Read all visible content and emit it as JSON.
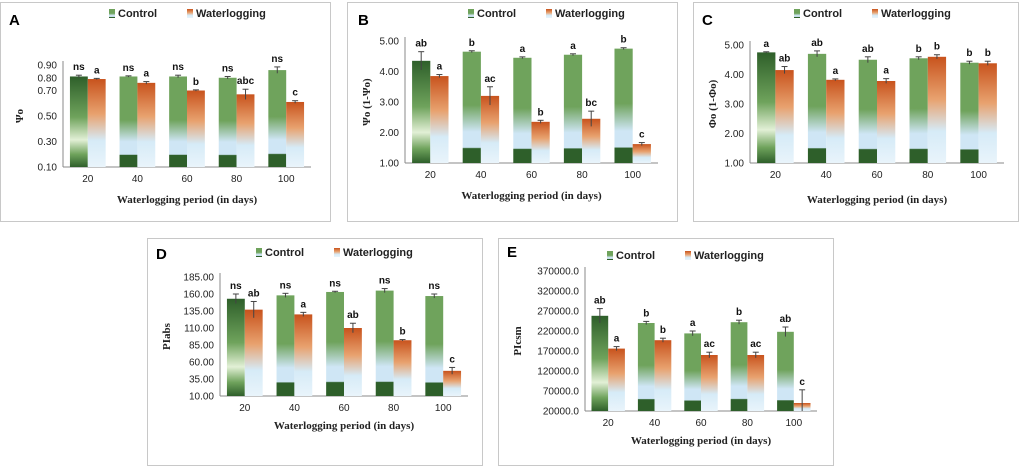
{
  "colors": {
    "control_dark": "#2e5f2a",
    "control_mid": "#6fa35c",
    "control_light": "#cfe6f5",
    "water_dark": "#c8531d",
    "water_mid": "#e8a26f",
    "water_light": "#d6ebf7",
    "axis": "#888888",
    "error": "#444444"
  },
  "chart_data": [
    {
      "id": "A",
      "type": "bar",
      "panel_label": "A",
      "categories": [
        "20",
        "40",
        "60",
        "80",
        "100"
      ],
      "xlabel": "Waterlogging period (in days)",
      "ylabel": "Ψo",
      "ylim": [
        0.1,
        0.9
      ],
      "yticks": [
        "0.10",
        "0.30",
        "0.50",
        "0.70",
        "0.80",
        "0.90"
      ],
      "legend": [
        "Control",
        "Waterlogging"
      ],
      "series": [
        {
          "name": "Control",
          "values": [
            0.81,
            0.81,
            0.81,
            0.8,
            0.86
          ],
          "errors": [
            0.01,
            0.005,
            0.01,
            0.01,
            0.025
          ],
          "labels": [
            "ns",
            "ns",
            "ns",
            "ns",
            "ns"
          ]
        },
        {
          "name": "Waterlogging",
          "values": [
            0.79,
            0.76,
            0.7,
            0.67,
            0.61
          ],
          "errors": [
            0.005,
            0.01,
            0.005,
            0.04,
            0.01
          ],
          "labels": [
            "a",
            "a",
            "b",
            "abc",
            "c"
          ]
        }
      ]
    },
    {
      "id": "B",
      "type": "bar",
      "panel_label": "B",
      "categories": [
        "20",
        "40",
        "60",
        "80",
        "100"
      ],
      "xlabel": "Waterlogging period (in days)",
      "ylabel": "Ψo (1-Ψo)",
      "ylim": [
        1.0,
        5.0
      ],
      "yticks": [
        "1.00",
        "2.00",
        "3.00",
        "4.00",
        "5.00"
      ],
      "legend": [
        "Control",
        "Waterlogging"
      ],
      "series": [
        {
          "name": "Control",
          "values": [
            4.35,
            4.65,
            4.45,
            4.55,
            4.75
          ],
          "errors": [
            0.3,
            0.03,
            0.03,
            0.03,
            0.03
          ],
          "labels": [
            "ab",
            "b",
            "a",
            "a",
            "b"
          ]
        },
        {
          "name": "Waterlogging",
          "values": [
            3.85,
            3.2,
            2.35,
            2.45,
            1.62
          ],
          "errors": [
            0.05,
            0.3,
            0.05,
            0.25,
            0.05
          ],
          "labels": [
            "a",
            "ac",
            "b",
            "bc",
            "c"
          ]
        }
      ]
    },
    {
      "id": "C",
      "type": "bar",
      "panel_label": "C",
      "categories": [
        "20",
        "40",
        "60",
        "80",
        "100"
      ],
      "xlabel": "Waterlogging period (in days)",
      "ylabel": "Φo (1-Φo)",
      "ylim": [
        1.0,
        5.0
      ],
      "yticks": [
        "1.00",
        "2.00",
        "3.00",
        "4.00",
        "5.00"
      ],
      "legend": [
        "Control",
        "Waterlogging"
      ],
      "series": [
        {
          "name": "Control",
          "values": [
            4.75,
            4.7,
            4.5,
            4.55,
            4.4
          ],
          "errors": [
            0.02,
            0.1,
            0.1,
            0.05,
            0.05
          ],
          "labels": [
            "a",
            "ab",
            "ab",
            "b",
            "b"
          ]
        },
        {
          "name": "Waterlogging",
          "values": [
            4.15,
            3.82,
            3.78,
            4.6,
            4.38
          ],
          "errors": [
            0.12,
            0.03,
            0.08,
            0.07,
            0.07
          ],
          "labels": [
            "ab",
            "a",
            "a",
            "b",
            "b"
          ]
        }
      ]
    },
    {
      "id": "D",
      "type": "bar",
      "panel_label": "D",
      "categories": [
        "20",
        "40",
        "60",
        "80",
        "100"
      ],
      "xlabel": "Waterlogging period (in days)",
      "ylabel": "PIabs",
      "ylim": [
        10.0,
        185.0
      ],
      "yticks": [
        "10.00",
        "35.00",
        "60.00",
        "85.00",
        "110.00",
        "135.00",
        "160.00",
        "185.00"
      ],
      "legend": [
        "Control",
        "Waterlogging"
      ],
      "series": [
        {
          "name": "Control",
          "values": [
            153,
            158,
            163,
            165,
            157
          ],
          "errors": [
            7,
            3,
            1,
            3,
            3
          ],
          "labels": [
            "ns",
            "ns",
            "ns",
            "ns",
            "ns"
          ]
        },
        {
          "name": "Waterlogging",
          "values": [
            137,
            130,
            110,
            92,
            47
          ],
          "errors": [
            12,
            3,
            7,
            1,
            5
          ],
          "labels": [
            "ab",
            "a",
            "ab",
            "b",
            "c"
          ]
        }
      ]
    },
    {
      "id": "E",
      "type": "bar",
      "panel_label": "E",
      "categories": [
        "20",
        "40",
        "60",
        "80",
        "100"
      ],
      "xlabel": "Waterlogging period (in days)",
      "ylabel": "PIcsm",
      "ylim": [
        20000,
        370000
      ],
      "yticks": [
        "20000.0",
        "70000.0",
        "120000.0",
        "170000.0",
        "220000.0",
        "270000.0",
        "320000.0",
        "370000.0"
      ],
      "legend": [
        "Control",
        "Waterlogging"
      ],
      "series": [
        {
          "name": "Control",
          "values": [
            258000,
            240000,
            214000,
            242000,
            218000
          ],
          "errors": [
            18000,
            4000,
            6000,
            5000,
            12000
          ],
          "labels": [
            "ab",
            "b",
            "a",
            "b",
            "ab"
          ]
        },
        {
          "name": "Waterlogging",
          "values": [
            176000,
            197000,
            160000,
            160000,
            40000
          ],
          "errors": [
            5000,
            5000,
            7000,
            7000,
            33000
          ],
          "labels": [
            "a",
            "b",
            "ac",
            "ac",
            "c"
          ]
        }
      ]
    }
  ]
}
